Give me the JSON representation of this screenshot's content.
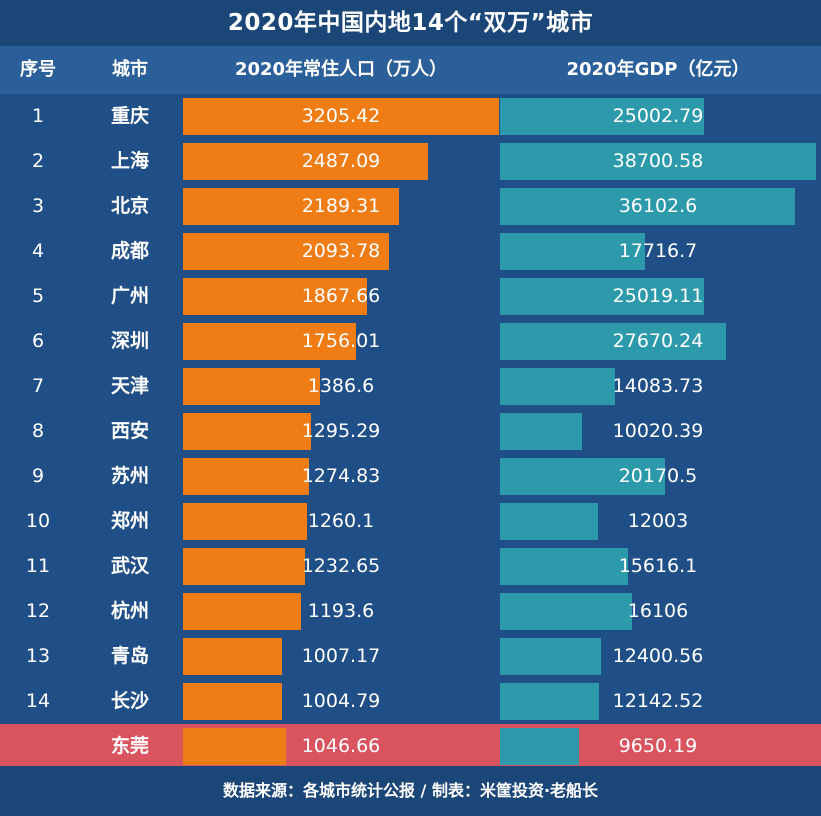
{
  "title": "2020年中国内地14个“双万”城市",
  "header": {
    "index": "序号",
    "city": "城市",
    "population": "2020年常住人口（万人）",
    "gdp": "2020年GDP（亿元）"
  },
  "footer": "数据来源：各城市统计公报 / 制表：米筐投资·老船长",
  "colors": {
    "population_bar": "#f07c16",
    "gdp_bar": "#2c9aab",
    "highlight_row": "#d9545f"
  },
  "chart_data": {
    "type": "bar",
    "title": "2020年中国内地14个“双万”城市",
    "categories": [
      "重庆",
      "上海",
      "北京",
      "成都",
      "广州",
      "深圳",
      "天津",
      "西安",
      "苏州",
      "郑州",
      "武汉",
      "杭州",
      "青岛",
      "长沙",
      "东莞"
    ],
    "indices": [
      "1",
      "2",
      "3",
      "4",
      "5",
      "6",
      "7",
      "8",
      "9",
      "10",
      "11",
      "12",
      "13",
      "14",
      ""
    ],
    "highlighted": [
      "东莞"
    ],
    "series": [
      {
        "name": "2020年常住人口（万人）",
        "values": [
          3205.42,
          2487.09,
          2189.31,
          2093.78,
          1867.66,
          1756.01,
          1386.6,
          1295.29,
          1274.83,
          1260.1,
          1232.65,
          1193.6,
          1007.17,
          1004.79,
          1046.66
        ],
        "labels": [
          "3205.42",
          "2487.09",
          "2189.31",
          "2093.78",
          "1867.66",
          "1756.01",
          "1386.6",
          "1295.29",
          "1274.83",
          "1260.1",
          "1232.65",
          "1193.6",
          "1007.17",
          "1004.79",
          "1046.66"
        ],
        "xlim": [
          0,
          3205.42
        ]
      },
      {
        "name": "2020年GDP（亿元）",
        "values": [
          25002.79,
          38700.58,
          36102.6,
          17716.7,
          25019.11,
          27670.24,
          14083.73,
          10020.39,
          20170.5,
          12003,
          15616.1,
          16106,
          12400.56,
          12142.52,
          9650.19
        ],
        "labels": [
          "25002.79",
          "38700.58",
          "36102.6",
          "17716.7",
          "25019.11",
          "27670.24",
          "14083.73",
          "10020.39",
          "20170.5",
          "12003",
          "15616.1",
          "16106",
          "12400.56",
          "12142.52",
          "9650.19"
        ],
        "xlim": [
          0,
          38700.58
        ]
      }
    ]
  }
}
